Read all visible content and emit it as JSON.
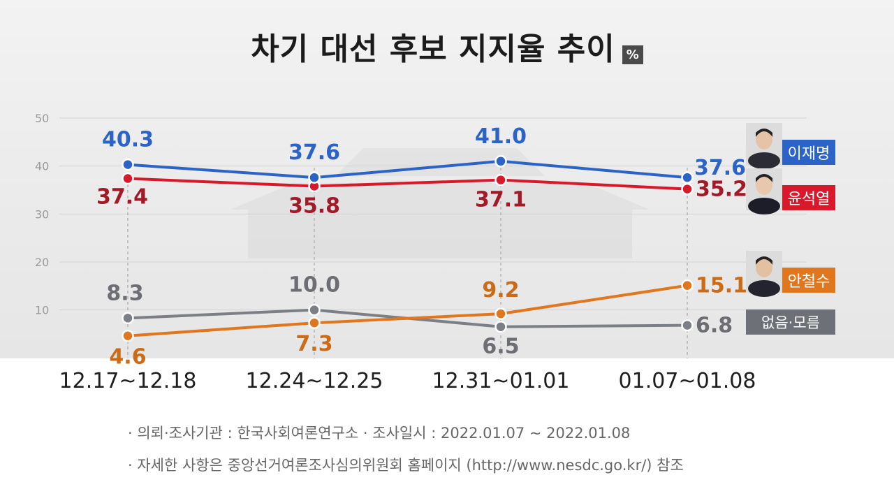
{
  "title": "차기 대선 후보 지지율 추이",
  "unit": "%",
  "chart_data": {
    "type": "line",
    "categories": [
      "12.17~12.18",
      "12.24~12.25",
      "12.31~01.01",
      "01.07~01.08"
    ],
    "y_ticks": [
      "50",
      "40",
      "30",
      "20",
      "10"
    ],
    "ylim": [
      0,
      50
    ],
    "grid": true,
    "legend_placement": "right",
    "series": [
      {
        "name": "이재명",
        "values": [
          40.3,
          37.6,
          41.0,
          37.6
        ],
        "labels": [
          "40.3",
          "37.6",
          "41.0",
          "37.6"
        ],
        "color": "#2b63c6",
        "label_color": "#2b63c6",
        "label_pos": "above",
        "icon": "lee-jae-myung-portrait-icon"
      },
      {
        "name": "윤석열",
        "values": [
          37.4,
          35.8,
          37.1,
          35.2
        ],
        "labels": [
          "37.4",
          "35.8",
          "37.1",
          "35.2"
        ],
        "color": "#d8192b",
        "label_color": "#a21a28",
        "label_pos": "below",
        "icon": "yoon-suk-yeol-portrait-icon"
      },
      {
        "name": "안철수",
        "values": [
          4.6,
          7.3,
          9.2,
          15.1
        ],
        "labels": [
          "4.6",
          "7.3",
          "9.2",
          "15.1"
        ],
        "color": "#e0761d",
        "label_color": "#cc6a16",
        "label_pos": "above",
        "icon": "ahn-cheol-soo-portrait-icon"
      },
      {
        "name": "없음·모름",
        "values": [
          8.3,
          10.0,
          6.5,
          6.8
        ],
        "labels": [
          "8.3",
          "10.0",
          "6.5",
          "6.8"
        ],
        "color": "#7d7f86",
        "label_color": "#6c6e74",
        "label_pos": "above",
        "icon": ""
      }
    ]
  },
  "notes": [
    "· 의뢰·조사기관 : 한국사회여론연구소   · 조사일시 : 2022.01.07 ~ 2022.01.08",
    "· 자세한 사항은 중앙선거여론조사심의위원회 홈페이지 (http://www.nesdc.go.kr/) 참조"
  ]
}
